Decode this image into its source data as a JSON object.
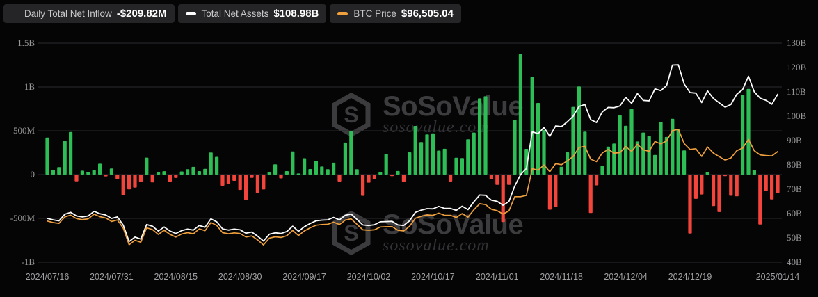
{
  "watermark": {
    "brand": "SoSoValue",
    "domain": "sosovalue.com"
  },
  "legend": {
    "items": [
      {
        "icon": "inflow-bars-icon",
        "label": "Daily Total Net Inflow",
        "value": "-$209.82M"
      },
      {
        "icon": "net-assets-dash-icon",
        "label": "Total Net Assets",
        "value": "$108.98B"
      },
      {
        "icon": "btc-price-dash-icon",
        "label": "BTC Price",
        "value": "$96,505.04"
      }
    ]
  },
  "colors": {
    "positive": "#2dbe56",
    "negative": "#f4453c",
    "net_assets_line": "#fcfcfc",
    "btc_line": "#f0a03c",
    "grid": "#2c2c2e",
    "pill_bg": "#252528",
    "background": "#050506"
  },
  "chart_data": {
    "type": "bar",
    "title": "",
    "grid": true,
    "legend_position": "top-left",
    "left_axis": {
      "unit": "USD",
      "min": -1000000000,
      "max": 1500000000,
      "ticks": [
        "1.5B",
        "1B",
        "500M",
        "0",
        "-500M",
        "-1B"
      ]
    },
    "right_axis": {
      "unit": "USD",
      "min": 40,
      "max": 130,
      "ticks": [
        "130B",
        "120B",
        "110B",
        "100B",
        "90B",
        "80B",
        "70B",
        "60B",
        "50B",
        "40B"
      ]
    },
    "btc_hidden_axis": {
      "min": 46000,
      "max": 146000
    },
    "x_ticks": [
      {
        "label": "2024/07/16",
        "index": 0
      },
      {
        "label": "2024/07/31",
        "index": 11
      },
      {
        "label": "2024/08/15",
        "index": 22
      },
      {
        "label": "2024/08/30",
        "index": 33
      },
      {
        "label": "2024/09/17",
        "index": 44
      },
      {
        "label": "2024/10/02",
        "index": 55
      },
      {
        "label": "2024/10/17",
        "index": 66
      },
      {
        "label": "2024/11/01",
        "index": 77
      },
      {
        "label": "2024/11/18",
        "index": 88
      },
      {
        "label": "2024/12/04",
        "index": 99
      },
      {
        "label": "2024/12/19",
        "index": 110
      },
      {
        "label": "2025/01/14",
        "index": 125
      }
    ],
    "x": [
      "2024/07/16",
      "2024/07/17",
      "2024/07/18",
      "2024/07/19",
      "2024/07/22",
      "2024/07/23",
      "2024/07/24",
      "2024/07/25",
      "2024/07/26",
      "2024/07/29",
      "2024/07/30",
      "2024/07/31",
      "2024/08/01",
      "2024/08/02",
      "2024/08/05",
      "2024/08/06",
      "2024/08/07",
      "2024/08/08",
      "2024/08/09",
      "2024/08/12",
      "2024/08/13",
      "2024/08/14",
      "2024/08/15",
      "2024/08/16",
      "2024/08/19",
      "2024/08/20",
      "2024/08/21",
      "2024/08/22",
      "2024/08/23",
      "2024/08/26",
      "2024/08/27",
      "2024/08/28",
      "2024/08/29",
      "2024/08/30",
      "2024/09/03",
      "2024/09/04",
      "2024/09/05",
      "2024/09/06",
      "2024/09/09",
      "2024/09/10",
      "2024/09/11",
      "2024/09/12",
      "2024/09/13",
      "2024/09/16",
      "2024/09/17",
      "2024/09/18",
      "2024/09/19",
      "2024/09/20",
      "2024/09/23",
      "2024/09/24",
      "2024/09/25",
      "2024/09/26",
      "2024/09/27",
      "2024/09/30",
      "2024/10/01",
      "2024/10/02",
      "2024/10/03",
      "2024/10/04",
      "2024/10/07",
      "2024/10/08",
      "2024/10/09",
      "2024/10/10",
      "2024/10/11",
      "2024/10/14",
      "2024/10/15",
      "2024/10/16",
      "2024/10/17",
      "2024/10/18",
      "2024/10/21",
      "2024/10/22",
      "2024/10/23",
      "2024/10/24",
      "2024/10/25",
      "2024/10/28",
      "2024/10/29",
      "2024/10/30",
      "2024/10/31",
      "2024/11/01",
      "2024/11/04",
      "2024/11/05",
      "2024/11/06",
      "2024/11/07",
      "2024/11/08",
      "2024/11/11",
      "2024/11/12",
      "2024/11/13",
      "2024/11/14",
      "2024/11/15",
      "2024/11/18",
      "2024/11/19",
      "2024/11/20",
      "2024/11/21",
      "2024/11/22",
      "2024/11/25",
      "2024/11/26",
      "2024/11/27",
      "2024/11/29",
      "2024/12/02",
      "2024/12/03",
      "2024/12/04",
      "2024/12/05",
      "2024/12/06",
      "2024/12/09",
      "2024/12/10",
      "2024/12/11",
      "2024/12/12",
      "2024/12/13",
      "2024/12/16",
      "2024/12/17",
      "2024/12/18",
      "2024/12/19",
      "2024/12/20",
      "2024/12/23",
      "2024/12/24",
      "2024/12/26",
      "2024/12/27",
      "2024/12/30",
      "2024/12/31",
      "2025/01/02",
      "2025/01/03",
      "2025/01/06",
      "2025/01/07",
      "2025/01/08",
      "2025/01/10",
      "2025/01/13",
      "2025/01/14"
    ],
    "series": [
      {
        "name": "Daily Total Net Inflow",
        "type": "bar",
        "axis": "left",
        "unit": "USD millions",
        "latest": "-$209.82M",
        "values": [
          422.5,
          53.0,
          84.8,
          383.1,
          485.9,
          -78.0,
          44.5,
          31.1,
          51.8,
          124.1,
          -20.5,
          70.0,
          -50.6,
          -237.4,
          -168.4,
          -148.6,
          -81.0,
          194.0,
          -89.7,
          27.9,
          38.9,
          -81.4,
          -39.2,
          35.9,
          61.9,
          88.0,
          39.4,
          65.2,
          252.0,
          202.6,
          -127.1,
          -105.0,
          -71.8,
          -175.6,
          -287.8,
          -37.3,
          -211.1,
          -169.9,
          28.6,
          117.4,
          -43.9,
          39.4,
          263.2,
          12.7,
          186.8,
          63.4,
          158.3,
          92.1,
          61.3,
          136.0,
          -79.1,
          365.6,
          494.4,
          61.5,
          -242.6,
          -91.8,
          -54.1,
          25.6,
          235.2,
          -18.6,
          40.3,
          -81.1,
          253.6,
          555.9,
          371.0,
          458.5,
          470.5,
          273.7,
          294.3,
          -79.1,
          192.4,
          188.1,
          402.0,
          479.3,
          870.1,
          893.3,
          -54.9,
          -116.8,
          -541.1,
          -116.8,
          621.9,
          1374.8,
          293.4,
          1114.1,
          817.5,
          510.1,
          -400.7,
          -370.0,
          89.3,
          254.8,
          773.4,
          1005.2,
          490.3,
          -438.4,
          -122.8,
          103.1,
          320.0,
          354.0,
          676.5,
          556.8,
          747.8,
          377.7,
          479.0,
          440.0,
          223.5,
          599.8,
          429.0,
          636.6,
          522.6,
          275.3,
          -671.9,
          -277.0,
          -226.6,
          31.8,
          -358.6,
          -427.6,
          -17.3,
          -242.3,
          -248.4,
          908.1,
          978.6,
          52.9,
          -568.8,
          -186.0,
          -284.1,
          -209.82
        ]
      },
      {
        "name": "Total Net Assets",
        "type": "line",
        "axis": "right",
        "unit": "USD billions",
        "latest": "$108.98B",
        "values": [
          58.0,
          57.4,
          57.0,
          59.7,
          60.5,
          59.0,
          58.6,
          59.0,
          60.9,
          59.9,
          59.4,
          58.0,
          58.6,
          55.2,
          48.5,
          50.3,
          49.5,
          55.5,
          54.8,
          52.8,
          54.5,
          52.8,
          51.8,
          53.0,
          53.6,
          53.2,
          55.1,
          54.4,
          57.8,
          56.6,
          53.7,
          53.2,
          53.6,
          53.3,
          51.9,
          52.4,
          50.7,
          48.7,
          51.5,
          52.1,
          51.8,
          52.6,
          54.8,
          52.7,
          54.6,
          55.9,
          57.0,
          57.3,
          57.4,
          58.4,
          57.4,
          59.3,
          59.8,
          57.6,
          55.3,
          55.1,
          55.4,
          56.6,
          56.7,
          56.8,
          55.3,
          55.1,
          57.0,
          60.5,
          61.4,
          62.0,
          61.9,
          62.9,
          62.1,
          62.1,
          61.3,
          63.0,
          61.6,
          64.8,
          67.6,
          67.5,
          65.5,
          65.0,
          63.4,
          64.9,
          71.3,
          76.0,
          78.5,
          93.6,
          92.8,
          95.4,
          91.7,
          96.0,
          95.7,
          97.7,
          100.0,
          104.0,
          104.8,
          98.6,
          97.4,
          101.8,
          103.6,
          103.5,
          104.2,
          107.7,
          105.3,
          109.3,
          106.5,
          106.3,
          111.2,
          110.5,
          112.6,
          121.0,
          121.1,
          113.2,
          109.7,
          109.5,
          105.6,
          110.4,
          107.3,
          105.5,
          103.7,
          104.8,
          109.0,
          110.9,
          116.4,
          110.0,
          107.4,
          106.5,
          104.9,
          108.98
        ]
      },
      {
        "name": "BTC Price",
        "type": "line",
        "axis": "btc_hidden",
        "unit": "USD",
        "latest": "$96,505.04",
        "values": [
          64800,
          64100,
          63700,
          66700,
          67500,
          65900,
          65400,
          65800,
          67900,
          66800,
          66200,
          64600,
          65300,
          61500,
          54000,
          56000,
          55100,
          61700,
          60900,
          58700,
          60600,
          58700,
          57500,
          58900,
          59500,
          59000,
          61200,
          60400,
          64100,
          62800,
          59500,
          59000,
          59400,
          59100,
          57500,
          58000,
          56200,
          53900,
          57000,
          57600,
          57300,
          58100,
          60500,
          58200,
          60300,
          61700,
          62900,
          63200,
          63300,
          64300,
          63200,
          65200,
          65800,
          63300,
          60800,
          60600,
          60800,
          62100,
          62200,
          62300,
          60600,
          60300,
          62400,
          66100,
          67000,
          67600,
          67400,
          68400,
          67400,
          67400,
          66400,
          68200,
          66600,
          69900,
          72700,
          72300,
          70200,
          69500,
          68000,
          69400,
          75900,
          75900,
          76500,
          88700,
          88000,
          90400,
          87300,
          91000,
          90500,
          92300,
          94300,
          98400,
          98900,
          93000,
          91900,
          95900,
          97500,
          95800,
          96000,
          98800,
          96600,
          99800,
          97300,
          96600,
          101100,
          100000,
          101400,
          106100,
          106700,
          100200,
          97500,
          97800,
          94300,
          98600,
          95800,
          94200,
          92600,
          93600,
          96900,
          98100,
          102100,
          96900,
          95000,
          94700,
          94500,
          96505.04
        ]
      }
    ]
  }
}
